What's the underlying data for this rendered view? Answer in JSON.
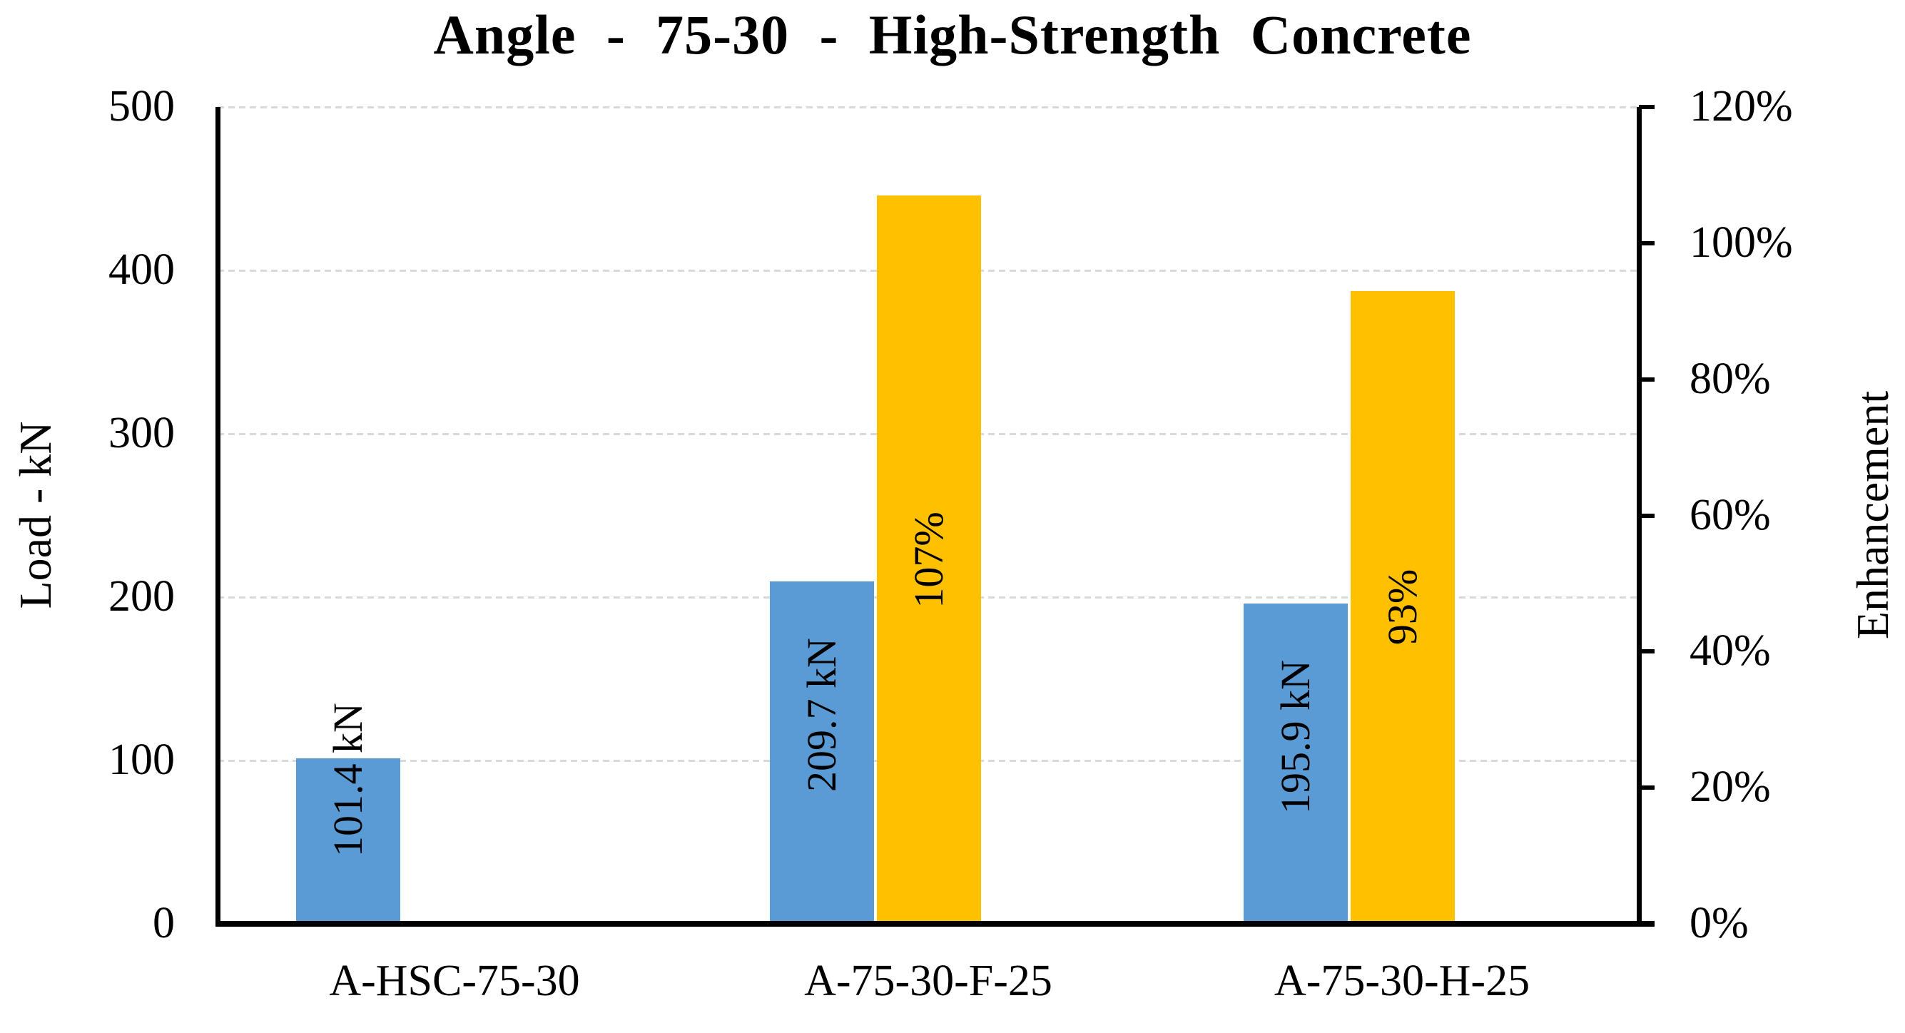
{
  "title": "Angle - 75-30 - High-Strength Concrete",
  "left_axis": {
    "title": "Load - kN",
    "tick_labels": [
      "500",
      "400",
      "300",
      "200",
      "100",
      "0"
    ]
  },
  "right_axis": {
    "title": "Enhancement",
    "tick_labels": [
      "120%",
      "100%",
      "80%",
      "60%",
      "40%",
      "20%",
      "0%"
    ]
  },
  "colors": {
    "load_bar": "#5B9BD5",
    "enhancement_bar": "#FFC000",
    "gridline": "#d9d9d9",
    "axis": "#000000"
  },
  "chart_data": {
    "type": "bar",
    "categories": [
      "A-HSC-75-30",
      "A-75-30-F-25",
      "A-75-30-H-25"
    ],
    "series": [
      {
        "name": "Load",
        "axis": "left",
        "unit": "kN",
        "color": "#5B9BD5",
        "values": [
          101.4,
          209.7,
          195.9
        ],
        "data_labels": [
          "101.4 kN",
          "209.7 kN",
          "195.9 kN"
        ]
      },
      {
        "name": "Enhancement",
        "axis": "right",
        "unit": "%",
        "color": "#FFC000",
        "values": [
          null,
          107,
          93
        ],
        "data_labels": [
          "",
          "107%",
          "93%"
        ]
      }
    ],
    "title": "Angle - 75-30 - High-Strength Concrete",
    "xlabel": "",
    "ylabel_left": "Load - kN",
    "ylabel_right": "Enhancement",
    "left_ylim": [
      0,
      500
    ],
    "right_ylim": [
      0,
      120
    ],
    "grid": true,
    "legend": "none"
  }
}
